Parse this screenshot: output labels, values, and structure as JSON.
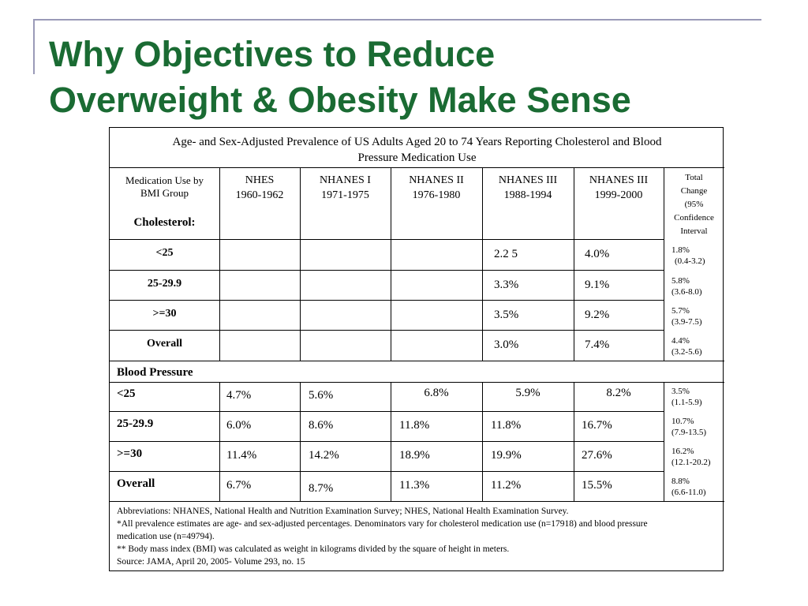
{
  "slide": {
    "title_line1": "Why Objectives to Reduce",
    "title_line2": "Overweight & Obesity Make Sense"
  },
  "table": {
    "caption_line1": "Age- and Sex-Adjusted Prevalence of US Adults Aged 20 to 74 Years Reporting Cholesterol and Blood",
    "caption_line2": "Pressure Medication Use",
    "row_header_line1": "Medication Use by",
    "row_header_line2": "BMI Group",
    "cholesterol_label": "Cholesterol:",
    "blood_pressure_label": "Blood Pressure",
    "columns": [
      {
        "name": "NHES",
        "years": "1960-1962"
      },
      {
        "name": "NHANES I",
        "years": "1971-1975"
      },
      {
        "name": "NHANES II",
        "years": "1976-1980"
      },
      {
        "name": "NHANES III",
        "years": "1988-1994"
      },
      {
        "name": "NHANES III",
        "years": "1999-2000"
      }
    ],
    "total_header": [
      "Total",
      "Change",
      "(95%",
      "Confidence",
      "Interval"
    ],
    "cholesterol_rows": [
      {
        "group": "<25",
        "values": [
          "",
          "",
          "",
          "2.2 5",
          "4.0%"
        ],
        "total": "1.8%",
        "ci": "(0.4-3.2)"
      },
      {
        "group": "25-29.9",
        "values": [
          "",
          "",
          "",
          "3.3%",
          "9.1%"
        ],
        "total": "5.8%",
        "ci": "(3.6-8.0)"
      },
      {
        "group": ">=30",
        "values": [
          "",
          "",
          "",
          "3.5%",
          "9.2%"
        ],
        "total": "5.7%",
        "ci": "(3.9-7.5)"
      },
      {
        "group": "Overall",
        "values": [
          "",
          "",
          "",
          "3.0%",
          "7.4%"
        ],
        "total": "4.4%",
        "ci": "(3.2-5.6)"
      }
    ],
    "bp_rows": [
      {
        "group": "<25",
        "values": [
          "4.7%",
          "5.6%",
          "6.8%",
          "5.9%",
          "8.2%"
        ],
        "total": "3.5%",
        "ci": "(1.1-5.9)"
      },
      {
        "group": "25-29.9",
        "values": [
          "6.0%",
          "8.6%",
          "11.8%",
          "11.8%",
          "16.7%"
        ],
        "total": "10.7%",
        "ci": "(7.9-13.5)"
      },
      {
        "group": ">=30",
        "values": [
          "11.4%",
          "14.2%",
          "18.9%",
          "19.9%",
          "27.6%"
        ],
        "total": "16.2%",
        "ci": "(12.1-20.2)"
      },
      {
        "group": "Overall",
        "values": [
          "6.7%",
          "8.7%",
          "11.3%",
          "11.2%",
          "15.5%"
        ],
        "total": "8.8%",
        "ci": "(6.6-11.0)"
      }
    ],
    "notes": [
      "Abbreviations: NHANES, National Health and Nutrition Examination Survey; NHES, National Health Examination Survey.",
      "*All prevalence estimates are age- and sex-adjusted percentages. Denominators vary for cholesterol medication use (n=17918) and blood pressure",
      "medication use (n=49794).",
      "** Body mass index (BMI) was calculated as weight in kilograms divided by the square of height in meters.",
      "Source: JAMA, April 20, 2005- Volume 293, no. 15"
    ]
  }
}
